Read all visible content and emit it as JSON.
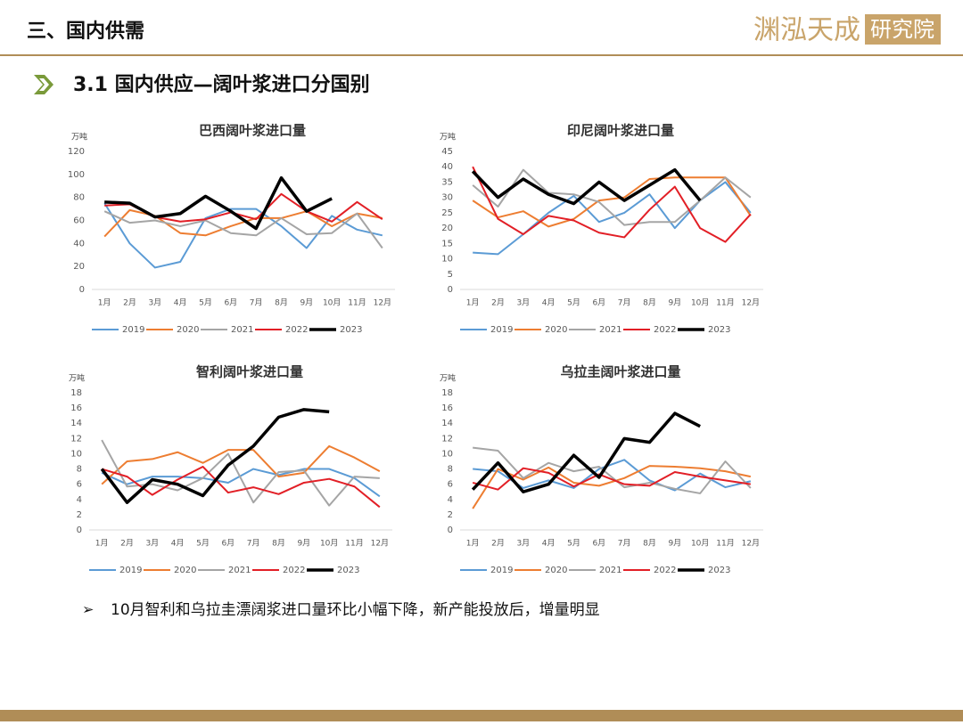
{
  "header": {
    "title": "三、国内供需",
    "logo": "渊泓天成",
    "logo_box": "研究院"
  },
  "subtitle": "3.1 国内供应—阔叶浆进口分国别",
  "note": "10月智利和乌拉圭漂阔浆进口量环比小幅下降，新产能投放后，增量明显",
  "chart_data": [
    {
      "type": "line",
      "title": "巴西阔叶浆进口量",
      "unit": "万吨",
      "categories": [
        "1月",
        "2月",
        "3月",
        "4月",
        "5月",
        "6月",
        "7月",
        "8月",
        "9月",
        "10月",
        "11月",
        "12月"
      ],
      "ylim": [
        0,
        120
      ],
      "yticks": [
        0,
        20,
        40,
        60,
        80,
        100,
        120
      ],
      "series": [
        {
          "name": "2019",
          "color": "#5b9bd5",
          "line_width": 2,
          "values": [
            75,
            40,
            19,
            24,
            62,
            70,
            70,
            55,
            36,
            64,
            52,
            47
          ]
        },
        {
          "name": "2020",
          "color": "#ed7d31",
          "line_width": 2,
          "values": [
            46,
            69,
            64,
            49,
            47,
            55,
            62,
            62,
            68,
            55,
            66,
            62
          ]
        },
        {
          "name": "2021",
          "color": "#a5a5a5",
          "line_width": 2,
          "values": [
            68,
            58,
            60,
            55,
            60,
            49,
            47,
            62,
            48,
            49,
            66,
            36
          ]
        },
        {
          "name": "2022",
          "color": "#e21f26",
          "line_width": 2,
          "values": [
            73,
            74,
            63,
            59,
            61,
            67,
            61,
            83,
            68,
            59,
            76,
            61
          ]
        },
        {
          "name": "2023",
          "color": "#000000",
          "line_width": 3.5,
          "values": [
            76,
            75,
            63,
            66,
            81,
            68,
            53,
            97,
            68,
            79,
            null,
            null
          ]
        }
      ]
    },
    {
      "type": "line",
      "title": "印尼阔叶浆进口量",
      "unit": "万吨",
      "categories": [
        "1月",
        "2月",
        "3月",
        "4月",
        "5月",
        "6月",
        "7月",
        "8月",
        "9月",
        "10月",
        "11月",
        "12月"
      ],
      "ylim": [
        0,
        45
      ],
      "yticks": [
        0,
        5,
        10,
        15,
        20,
        25,
        30,
        35,
        40,
        45
      ],
      "series": [
        {
          "name": "2019",
          "color": "#5b9bd5",
          "line_width": 2,
          "values": [
            12,
            11.5,
            18,
            25,
            30.5,
            22,
            25,
            31,
            20,
            29,
            35,
            25
          ]
        },
        {
          "name": "2020",
          "color": "#ed7d31",
          "line_width": 2,
          "values": [
            29,
            23.5,
            25.5,
            20.5,
            23,
            29,
            30,
            36,
            36.5,
            36.5,
            36.5,
            24
          ]
        },
        {
          "name": "2021",
          "color": "#a5a5a5",
          "line_width": 2,
          "values": [
            34,
            27,
            39,
            31.5,
            31,
            28.5,
            21,
            22,
            22,
            29,
            36.5,
            30
          ]
        },
        {
          "name": "2022",
          "color": "#e21f26",
          "line_width": 2,
          "values": [
            40,
            23,
            18,
            24,
            22.5,
            18.5,
            17,
            26,
            33.5,
            20,
            15.5,
            24.5
          ]
        },
        {
          "name": "2023",
          "color": "#000000",
          "line_width": 3.5,
          "values": [
            38.5,
            30,
            36,
            31,
            28,
            35,
            29,
            34,
            39,
            29,
            null,
            null
          ]
        }
      ]
    },
    {
      "type": "line",
      "title": "智利阔叶浆进口量",
      "unit": "万吨",
      "categories": [
        "1月",
        "2月",
        "3月",
        "4月",
        "5月",
        "6月",
        "7月",
        "8月",
        "9月",
        "10月",
        "11月",
        "12月"
      ],
      "ylim": [
        0,
        18
      ],
      "yticks": [
        0,
        2,
        4,
        6,
        8,
        10,
        12,
        14,
        16,
        18
      ],
      "series": [
        {
          "name": "2019",
          "color": "#5b9bd5",
          "line_width": 2,
          "values": [
            7.5,
            6,
            7,
            7,
            6.8,
            6.2,
            8,
            7.2,
            8,
            8,
            6.8,
            4.4
          ]
        },
        {
          "name": "2020",
          "color": "#ed7d31",
          "line_width": 2,
          "values": [
            6,
            9,
            9.3,
            10.2,
            8.8,
            10.5,
            10.5,
            7,
            7.5,
            11,
            9.5,
            7.7
          ]
        },
        {
          "name": "2021",
          "color": "#a5a5a5",
          "line_width": 2,
          "values": [
            11.8,
            5.7,
            6,
            5.2,
            6.8,
            10,
            3.6,
            7.6,
            7.8,
            3.2,
            7,
            6.8
          ]
        },
        {
          "name": "2022",
          "color": "#e21f26",
          "line_width": 2,
          "values": [
            8,
            7,
            4.6,
            6.6,
            8.3,
            4.9,
            5.6,
            4.7,
            6.2,
            6.7,
            5.7,
            3
          ]
        },
        {
          "name": "2023",
          "color": "#000000",
          "line_width": 3.5,
          "values": [
            8,
            3.6,
            6.6,
            6,
            4.5,
            8.5,
            11,
            14.8,
            15.8,
            15.5,
            null,
            null
          ]
        }
      ]
    },
    {
      "type": "line",
      "title": "乌拉圭阔叶浆进口量",
      "unit": "万吨",
      "categories": [
        "1月",
        "2月",
        "3月",
        "4月",
        "5月",
        "6月",
        "7月",
        "8月",
        "9月",
        "10月",
        "11月",
        "12月"
      ],
      "ylim": [
        0,
        18
      ],
      "yticks": [
        0,
        2,
        4,
        6,
        8,
        10,
        12,
        14,
        16,
        18
      ],
      "series": [
        {
          "name": "2019",
          "color": "#5b9bd5",
          "line_width": 2,
          "values": [
            8,
            7.7,
            5.5,
            6.5,
            5.5,
            8,
            9.2,
            6.5,
            5.2,
            7.4,
            5.6,
            6.4
          ]
        },
        {
          "name": "2020",
          "color": "#ed7d31",
          "line_width": 2,
          "values": [
            2.8,
            8,
            6.6,
            8.2,
            6.2,
            5.8,
            6.8,
            8.4,
            8.3,
            8.1,
            7.7,
            7
          ]
        },
        {
          "name": "2021",
          "color": "#a5a5a5",
          "line_width": 2,
          "values": [
            10.8,
            10.4,
            6.8,
            8.8,
            7.7,
            8.3,
            5.6,
            6.2,
            5.4,
            4.8,
            9,
            5.5
          ]
        },
        {
          "name": "2022",
          "color": "#e21f26",
          "line_width": 2,
          "values": [
            6.2,
            5.3,
            8.1,
            7.5,
            5.7,
            7.3,
            6,
            5.8,
            7.6,
            7,
            6.5,
            6
          ]
        },
        {
          "name": "2023",
          "color": "#000000",
          "line_width": 3.5,
          "values": [
            5.3,
            8.8,
            5,
            6,
            9.8,
            6.9,
            12,
            11.5,
            15.3,
            13.6,
            null,
            null
          ]
        }
      ]
    }
  ]
}
